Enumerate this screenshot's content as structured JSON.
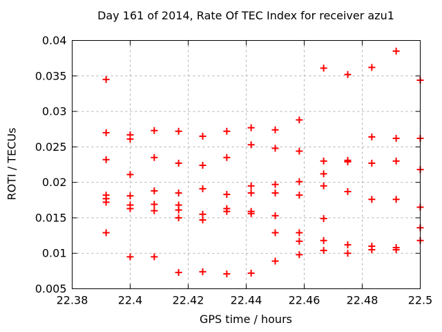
{
  "colors": {
    "background": "#ffffff",
    "border": "#000000",
    "grid": "#b0b0b0",
    "text": "#000000",
    "marker": "#ff0000"
  },
  "chart_data": {
    "type": "scatter",
    "title": "Day 161 of 2014, Rate Of TEC Index for receiver azu1",
    "xlabel": "GPS time / hours",
    "ylabel": "ROTI / TECUs",
    "xlim": [
      22.38,
      22.5
    ],
    "ylim": [
      0.005,
      0.04
    ],
    "grid": true,
    "legend": "none",
    "marker": {
      "shape": "plus",
      "color": "#ff0000",
      "size": 10
    },
    "xticks": {
      "values": [
        22.38,
        22.4,
        22.42,
        22.44,
        22.46,
        22.48,
        22.5
      ],
      "labels": [
        "22.38",
        "22.4",
        "22.42",
        "22.44",
        "22.46",
        "22.48",
        "22.5"
      ]
    },
    "yticks": {
      "values": [
        0.005,
        0.01,
        0.015,
        0.02,
        0.025,
        0.03,
        0.035,
        0.04
      ],
      "labels": [
        "0.005",
        "0.01",
        "0.015",
        "0.02",
        "0.025",
        "0.03",
        "0.035",
        "0.04"
      ]
    },
    "series": [
      {
        "name": "ROTI",
        "points": [
          [
            22.3917,
            0.0345
          ],
          [
            22.3917,
            0.027
          ],
          [
            22.3917,
            0.0232
          ],
          [
            22.3917,
            0.0182
          ],
          [
            22.3917,
            0.0177
          ],
          [
            22.3917,
            0.0172
          ],
          [
            22.3917,
            0.0129
          ],
          [
            22.4,
            0.0267
          ],
          [
            22.4,
            0.0261
          ],
          [
            22.4,
            0.0211
          ],
          [
            22.4,
            0.0181
          ],
          [
            22.4,
            0.0168
          ],
          [
            22.4,
            0.0163
          ],
          [
            22.4,
            0.0095
          ],
          [
            22.4083,
            0.0273
          ],
          [
            22.4083,
            0.0235
          ],
          [
            22.4083,
            0.0188
          ],
          [
            22.4083,
            0.0169
          ],
          [
            22.4083,
            0.016
          ],
          [
            22.4083,
            0.0095
          ],
          [
            22.4167,
            0.0272
          ],
          [
            22.4167,
            0.0227
          ],
          [
            22.4167,
            0.0185
          ],
          [
            22.4167,
            0.0168
          ],
          [
            22.4167,
            0.0161
          ],
          [
            22.4167,
            0.015
          ],
          [
            22.4167,
            0.0073
          ],
          [
            22.425,
            0.0265
          ],
          [
            22.425,
            0.0224
          ],
          [
            22.425,
            0.0191
          ],
          [
            22.425,
            0.0155
          ],
          [
            22.425,
            0.0147
          ],
          [
            22.425,
            0.0074
          ],
          [
            22.4333,
            0.0272
          ],
          [
            22.4333,
            0.0235
          ],
          [
            22.4333,
            0.0183
          ],
          [
            22.4333,
            0.0163
          ],
          [
            22.4333,
            0.0159
          ],
          [
            22.4333,
            0.0071
          ],
          [
            22.4417,
            0.0277
          ],
          [
            22.4417,
            0.0253
          ],
          [
            22.4417,
            0.0195
          ],
          [
            22.4417,
            0.0185
          ],
          [
            22.4417,
            0.0159
          ],
          [
            22.4417,
            0.0156
          ],
          [
            22.4417,
            0.0072
          ],
          [
            22.45,
            0.0274
          ],
          [
            22.45,
            0.0248
          ],
          [
            22.45,
            0.0197
          ],
          [
            22.45,
            0.0185
          ],
          [
            22.45,
            0.0153
          ],
          [
            22.45,
            0.0129
          ],
          [
            22.45,
            0.0089
          ],
          [
            22.4583,
            0.0288
          ],
          [
            22.4583,
            0.0244
          ],
          [
            22.4583,
            0.0201
          ],
          [
            22.4583,
            0.0182
          ],
          [
            22.4583,
            0.0129
          ],
          [
            22.4583,
            0.0117
          ],
          [
            22.4583,
            0.0098
          ],
          [
            22.4667,
            0.0361
          ],
          [
            22.4667,
            0.023
          ],
          [
            22.4667,
            0.0212
          ],
          [
            22.4667,
            0.0195
          ],
          [
            22.4667,
            0.0149
          ],
          [
            22.4667,
            0.0118
          ],
          [
            22.4667,
            0.0104
          ],
          [
            22.475,
            0.0352
          ],
          [
            22.475,
            0.0231
          ],
          [
            22.475,
            0.0229
          ],
          [
            22.475,
            0.0187
          ],
          [
            22.475,
            0.0112
          ],
          [
            22.475,
            0.01
          ],
          [
            22.4833,
            0.0362
          ],
          [
            22.4833,
            0.0264
          ],
          [
            22.4833,
            0.0227
          ],
          [
            22.4833,
            0.0176
          ],
          [
            22.4833,
            0.011
          ],
          [
            22.4833,
            0.0105
          ],
          [
            22.4917,
            0.0385
          ],
          [
            22.4917,
            0.0262
          ],
          [
            22.4917,
            0.023
          ],
          [
            22.4917,
            0.0176
          ],
          [
            22.4917,
            0.0108
          ],
          [
            22.4917,
            0.0105
          ],
          [
            22.5,
            0.0344
          ],
          [
            22.5,
            0.0262
          ],
          [
            22.5,
            0.0218
          ],
          [
            22.5,
            0.0165
          ],
          [
            22.5,
            0.0136
          ],
          [
            22.5,
            0.0118
          ]
        ]
      }
    ]
  }
}
